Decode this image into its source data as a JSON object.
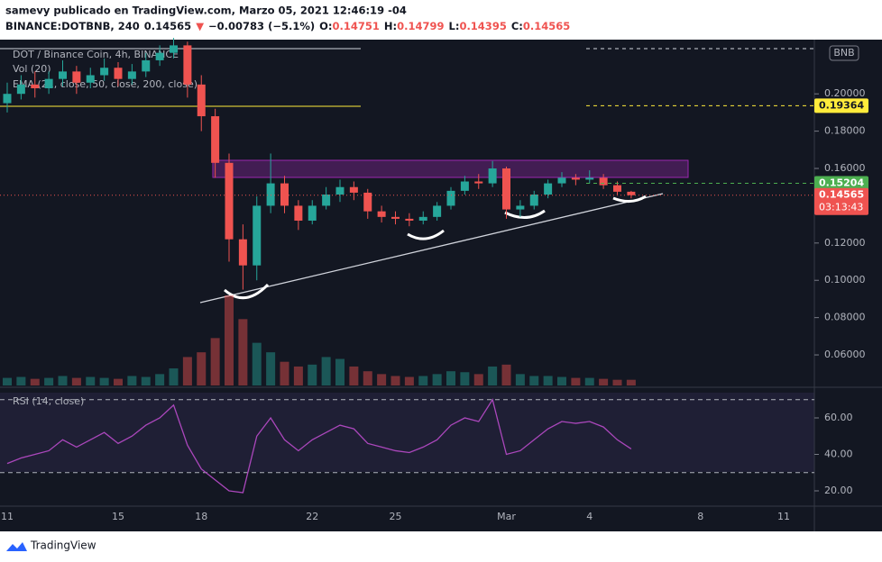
{
  "header": {
    "author_line": "samevy publicado en TradingView.com, Marzo 05, 2021 12:46:19 -04",
    "quote": [
      {
        "text": "BINANCE:DOTBNB, 240",
        "color": "#131722"
      },
      {
        "text": "0.14565",
        "color": "#131722"
      },
      {
        "text": "▼",
        "color": "#ef5350"
      },
      {
        "text": "−0.00783 (−5.1%)",
        "color": "#131722"
      },
      {
        "text": "O:",
        "color": "#131722"
      },
      {
        "text": "0.14751",
        "color": "#ef5350"
      },
      {
        "text": "H:",
        "color": "#131722"
      },
      {
        "text": "0.14799",
        "color": "#ef5350"
      },
      {
        "text": "L:",
        "color": "#131722"
      },
      {
        "text": "0.14395",
        "color": "#ef5350"
      },
      {
        "text": "C:",
        "color": "#131722"
      },
      {
        "text": "0.14565",
        "color": "#ef5350"
      }
    ]
  },
  "footer": {
    "brand": "TradingView"
  },
  "chart_data": {
    "type": "candlestick",
    "title": "DOT / Binance Coin, 4h, BINANCE",
    "indicators": [
      "Vol (20)",
      "EMA (21, close, 50, close, 200, close)"
    ],
    "rsi_title": "RSI (14, close)",
    "up_color": "#26a69a",
    "down_color": "#ef5350",
    "categories": [
      "11",
      null,
      null,
      null,
      null,
      null,
      null,
      null,
      "15",
      null,
      null,
      null,
      null,
      null,
      "18",
      null,
      null,
      null,
      null,
      null,
      null,
      null,
      "22",
      null,
      null,
      null,
      null,
      null,
      "25",
      null,
      null,
      null,
      null,
      null,
      null,
      null,
      "Mar",
      null,
      null,
      null,
      null,
      null,
      "4",
      null,
      null,
      null,
      null,
      null,
      null,
      null,
      "8",
      null,
      null,
      null,
      null,
      null,
      "11",
      null
    ],
    "open": [
      0.195,
      0.2,
      0.205,
      0.203,
      0.208,
      0.212,
      0.206,
      0.21,
      0.214,
      0.208,
      0.212,
      0.218,
      0.222,
      0.226,
      0.205,
      0.188,
      0.163,
      0.122,
      0.108,
      0.14,
      0.152,
      0.14,
      0.132,
      0.14,
      0.146,
      0.15,
      0.147,
      0.137,
      0.134,
      0.133,
      0.132,
      0.134,
      0.14,
      0.148,
      0.153,
      0.152,
      0.16,
      0.138,
      0.14,
      0.146,
      0.152,
      0.155,
      0.154,
      0.155,
      0.151,
      0.14751,
      null,
      null,
      null,
      null,
      null,
      null,
      null,
      null,
      null,
      null,
      null,
      null
    ],
    "high": [
      0.206,
      0.21,
      0.212,
      0.212,
      0.218,
      0.215,
      0.214,
      0.219,
      0.217,
      0.216,
      0.222,
      0.226,
      0.23,
      0.228,
      0.21,
      0.192,
      0.168,
      0.13,
      0.145,
      0.168,
      0.156,
      0.143,
      0.143,
      0.15,
      0.154,
      0.153,
      0.149,
      0.14,
      0.137,
      0.136,
      0.137,
      0.142,
      0.15,
      0.156,
      0.157,
      0.164,
      0.161,
      0.143,
      0.148,
      0.154,
      0.158,
      0.157,
      0.159,
      0.157,
      0.153,
      0.14799,
      null,
      null,
      null,
      null,
      null,
      null,
      null,
      null,
      null,
      null,
      null,
      null
    ],
    "low": [
      0.19,
      0.197,
      0.198,
      0.2,
      0.204,
      0.2,
      0.203,
      0.207,
      0.204,
      0.205,
      0.209,
      0.215,
      0.219,
      0.198,
      0.18,
      0.155,
      0.11,
      0.095,
      0.1,
      0.136,
      0.136,
      0.127,
      0.13,
      0.138,
      0.142,
      0.143,
      0.133,
      0.131,
      0.13,
      0.129,
      0.13,
      0.132,
      0.138,
      0.146,
      0.149,
      0.15,
      0.133,
      0.134,
      0.138,
      0.144,
      0.15,
      0.151,
      0.152,
      0.149,
      0.146,
      0.14395,
      null,
      null,
      null,
      null,
      null,
      null,
      null,
      null,
      null,
      null,
      null,
      null
    ],
    "close": [
      0.2,
      0.205,
      0.203,
      0.208,
      0.212,
      0.206,
      0.21,
      0.214,
      0.208,
      0.212,
      0.218,
      0.222,
      0.226,
      0.205,
      0.188,
      0.163,
      0.122,
      0.108,
      0.14,
      0.152,
      0.14,
      0.132,
      0.14,
      0.146,
      0.15,
      0.147,
      0.137,
      0.134,
      0.133,
      0.132,
      0.134,
      0.14,
      0.148,
      0.153,
      0.152,
      0.16,
      0.138,
      0.14,
      0.146,
      0.152,
      0.155,
      0.154,
      0.155,
      0.151,
      0.14751,
      0.14565,
      null,
      null,
      null,
      null,
      null,
      null,
      null,
      null,
      null,
      null,
      null,
      null
    ],
    "volume": [
      8,
      9,
      7,
      8,
      10,
      8,
      9,
      8,
      7,
      10,
      9,
      12,
      18,
      30,
      35,
      50,
      95,
      70,
      45,
      35,
      25,
      20,
      22,
      30,
      28,
      20,
      15,
      12,
      10,
      9,
      10,
      12,
      15,
      14,
      12,
      20,
      22,
      12,
      10,
      10,
      9,
      8,
      8,
      7,
      6,
      6,
      null,
      null,
      null,
      null,
      null,
      null,
      null,
      null,
      null,
      null,
      null,
      null
    ],
    "rsi": [
      35,
      38,
      40,
      42,
      48,
      44,
      48,
      52,
      46,
      50,
      56,
      60,
      67,
      45,
      32,
      26,
      20,
      19,
      50,
      60,
      48,
      42,
      48,
      52,
      56,
      54,
      46,
      44,
      42,
      41,
      44,
      48,
      56,
      60,
      58,
      70,
      40,
      42,
      48,
      54,
      58,
      57,
      58,
      55,
      48,
      43,
      null,
      null,
      null,
      null,
      null,
      null,
      null,
      null,
      null,
      null,
      null,
      null
    ],
    "ylim": [
      0.0436,
      0.2286
    ],
    "yticks": [
      {
        "value": 0.2,
        "label": "0.20000"
      },
      {
        "value": 0.18,
        "label": "0.18000"
      },
      {
        "value": 0.16,
        "label": "0.16000"
      },
      {
        "value": 0.12,
        "label": "0.12000"
      },
      {
        "value": 0.1,
        "label": "0.10000"
      },
      {
        "value": 0.08,
        "label": "0.08000"
      },
      {
        "value": 0.06,
        "label": "0.06000"
      }
    ],
    "rsi_ylim": [
      12.6,
      75.3
    ],
    "rsi_yticks": [
      {
        "value": 60,
        "label": "60.00"
      },
      {
        "value": 40,
        "label": "40.00"
      },
      {
        "value": 20,
        "label": "20.00"
      }
    ],
    "rsi_bands": [
      30,
      70
    ],
    "currency": "BNB",
    "price_labels": [
      {
        "value": 0.19364,
        "color": "#ffeb3b",
        "text_color": "#131722"
      },
      {
        "value": 0.15204,
        "color": "#4caf50",
        "text_color": "#ffffff"
      },
      {
        "value": 0.14565,
        "color": "#ef5350",
        "text_color": "#ffffff",
        "countdown": "03:13:43"
      }
    ]
  }
}
